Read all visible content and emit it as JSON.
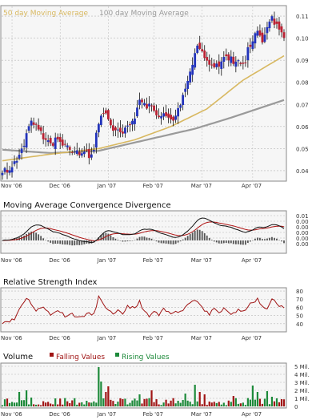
{
  "colors": {
    "up": "#2233bb",
    "down": "#bb2233",
    "ma50": "#d8b860",
    "ma100": "#9a9a9a",
    "macd": "#111111",
    "signal": "#b01515",
    "hist": "#555555",
    "rsi": "#a01515",
    "vol_falling": "#a01515",
    "vol_rising": "#1d8a3a",
    "grid": "#b8b8b8",
    "panel_bg": "#f6f6f6"
  },
  "chart_data": [
    {
      "type": "candlestick",
      "legend": [
        {
          "label": "50 day Moving Average",
          "color_key": "ma50"
        },
        {
          "label": "100 day Moving Average",
          "color_key": "ma100"
        }
      ],
      "yticks": [
        "0.11",
        "0.10",
        "0.09",
        "0.08",
        "0.07",
        "0.06",
        "0.05",
        "0.04"
      ],
      "ylim": [
        0.036,
        0.114
      ],
      "xticks": [
        "Nov '06",
        "Dec '06",
        "Jan '07",
        "Feb '07",
        "Mar '07",
        "Apr '07"
      ],
      "xtick_index": [
        4,
        24,
        44,
        63,
        83,
        104
      ],
      "n_days": 118,
      "ma50_knots": [
        [
          0,
          0.0445
        ],
        [
          20,
          0.0475
        ],
        [
          40,
          0.05
        ],
        [
          55,
          0.054
        ],
        [
          70,
          0.06
        ],
        [
          85,
          0.068
        ],
        [
          100,
          0.081
        ],
        [
          117,
          0.092
        ]
      ],
      "ma100_knots": [
        [
          0,
          0.0495
        ],
        [
          20,
          0.048
        ],
        [
          40,
          0.049
        ],
        [
          60,
          0.054
        ],
        [
          80,
          0.059
        ],
        [
          95,
          0.064
        ],
        [
          117,
          0.072
        ]
      ],
      "close_knots": [
        [
          0,
          0.041
        ],
        [
          4,
          0.04
        ],
        [
          7,
          0.047
        ],
        [
          10,
          0.055
        ],
        [
          12,
          0.062
        ],
        [
          15,
          0.058
        ],
        [
          18,
          0.052
        ],
        [
          22,
          0.053
        ],
        [
          26,
          0.051
        ],
        [
          30,
          0.049
        ],
        [
          33,
          0.048
        ],
        [
          36,
          0.047
        ],
        [
          38,
          0.05
        ],
        [
          40,
          0.063
        ],
        [
          42,
          0.065
        ],
        [
          44,
          0.063
        ],
        [
          47,
          0.058
        ],
        [
          50,
          0.055
        ],
        [
          52,
          0.061
        ],
        [
          55,
          0.065
        ],
        [
          57,
          0.072
        ],
        [
          59,
          0.071
        ],
        [
          61,
          0.069
        ],
        [
          63,
          0.068
        ],
        [
          66,
          0.065
        ],
        [
          68,
          0.066
        ],
        [
          70,
          0.063
        ],
        [
          72,
          0.066
        ],
        [
          74,
          0.069
        ],
        [
          77,
          0.08
        ],
        [
          79,
          0.089
        ],
        [
          81,
          0.098
        ],
        [
          83,
          0.095
        ],
        [
          85,
          0.088
        ],
        [
          88,
          0.085
        ],
        [
          90,
          0.089
        ],
        [
          93,
          0.092
        ],
        [
          96,
          0.09
        ],
        [
          99,
          0.089
        ],
        [
          101,
          0.09
        ],
        [
          103,
          0.098
        ],
        [
          106,
          0.103
        ],
        [
          108,
          0.1
        ],
        [
          110,
          0.104
        ],
        [
          112,
          0.11
        ],
        [
          114,
          0.106
        ],
        [
          117,
          0.1
        ]
      ]
    },
    {
      "type": "line",
      "title": "Moving Average Convergence Divergence",
      "yticks": [
        "0.01",
        "0.00",
        "0.00",
        "0.00",
        "0.00",
        "0.00"
      ],
      "xticks": [
        "Nov '06",
        "Dec '06",
        "Jan '07",
        "Feb '07",
        "Mar '07",
        "Apr '07"
      ]
    },
    {
      "type": "line",
      "title": "Relative Strength Index",
      "yticks": [
        "80",
        "70",
        "60",
        "50",
        "40"
      ],
      "ylim": [
        32,
        82
      ],
      "xticks": [
        "Nov '06",
        "Dec '06",
        "Jan '07",
        "Feb '07",
        "Mar '07",
        "Apr '07"
      ],
      "rsi_knots": [
        [
          0,
          42
        ],
        [
          5,
          45
        ],
        [
          7,
          58
        ],
        [
          10,
          72
        ],
        [
          12,
          65
        ],
        [
          14,
          55
        ],
        [
          17,
          62
        ],
        [
          20,
          50
        ],
        [
          23,
          57
        ],
        [
          26,
          50
        ],
        [
          29,
          52
        ],
        [
          32,
          47
        ],
        [
          35,
          52
        ],
        [
          38,
          51
        ],
        [
          40,
          73
        ],
        [
          42,
          62
        ],
        [
          44,
          58
        ],
        [
          46,
          50
        ],
        [
          48,
          55
        ],
        [
          50,
          52
        ],
        [
          52,
          62
        ],
        [
          55,
          58
        ],
        [
          57,
          67
        ],
        [
          59,
          55
        ],
        [
          61,
          48
        ],
        [
          63,
          55
        ],
        [
          65,
          50
        ],
        [
          67,
          57
        ],
        [
          70,
          52
        ],
        [
          72,
          57
        ],
        [
          74,
          54
        ],
        [
          76,
          61
        ],
        [
          78,
          66
        ],
        [
          80,
          70
        ],
        [
          82,
          65
        ],
        [
          84,
          55
        ],
        [
          86,
          52
        ],
        [
          88,
          57
        ],
        [
          90,
          53
        ],
        [
          92,
          58
        ],
        [
          95,
          52
        ],
        [
          98,
          56
        ],
        [
          100,
          54
        ],
        [
          102,
          62
        ],
        [
          104,
          65
        ],
        [
          106,
          70
        ],
        [
          108,
          60
        ],
        [
          110,
          58
        ],
        [
          112,
          72
        ],
        [
          114,
          63
        ],
        [
          117,
          60
        ]
      ]
    },
    {
      "type": "bar",
      "title": "Volume",
      "legend": [
        {
          "label": "Falling Values",
          "color_key": "vol_falling"
        },
        {
          "label": "Rising Values",
          "color_key": "vol_rising"
        }
      ],
      "yticks": [
        "5 Mil.",
        "4 Mil.",
        "3 Mil.",
        "2 Mil.",
        "1 Mil.",
        "0"
      ],
      "ylim": [
        0,
        5.2
      ],
      "xticks": [
        "Nov '06",
        "Dec '06",
        "Jan '07",
        "Feb '07",
        "Mar '07",
        "Apr '07"
      ],
      "spikes": [
        [
          7,
          1.8
        ],
        [
          10,
          2.0
        ],
        [
          12,
          1.1
        ],
        [
          40,
          4.9
        ],
        [
          41,
          3.1
        ],
        [
          43,
          1.8
        ],
        [
          44,
          2.5
        ],
        [
          57,
          1.5
        ],
        [
          62,
          2.0
        ],
        [
          76,
          1.6
        ],
        [
          80,
          2.7
        ],
        [
          82,
          1.8
        ],
        [
          84,
          1.5
        ],
        [
          96,
          1.3
        ],
        [
          104,
          2.6
        ],
        [
          106,
          1.8
        ],
        [
          110,
          1.9
        ],
        [
          112,
          1.2
        ],
        [
          116,
          0.9
        ]
      ]
    }
  ]
}
